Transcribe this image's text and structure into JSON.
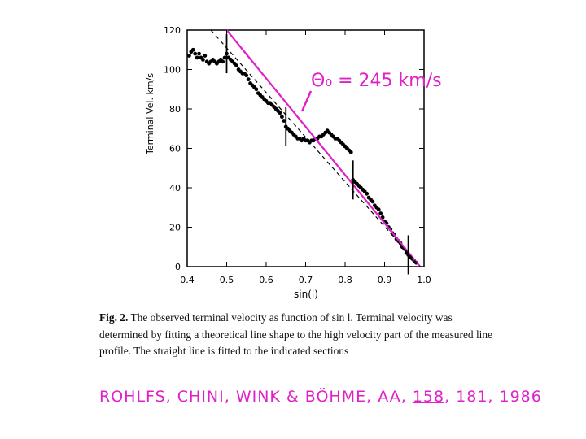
{
  "chart_data": {
    "type": "scatter",
    "xlabel": "sin(l)",
    "ylabel": "Terminal Vel. km/s",
    "xlim": [
      0.4,
      1.0
    ],
    "ylim": [
      0,
      120
    ],
    "x_ticks": [
      "0.4",
      "0.5",
      "0.6",
      "0.7",
      "0.8",
      "0.9",
      "1.0"
    ],
    "y_ticks": [
      "0",
      "20",
      "40",
      "60",
      "80",
      "100",
      "120"
    ],
    "grid": false,
    "annotation": "Θ₀ = 245 km/s",
    "series": [
      {
        "kind": "points",
        "color": "#000000",
        "points": [
          [
            0.405,
            107
          ],
          [
            0.41,
            109
          ],
          [
            0.415,
            110
          ],
          [
            0.42,
            108
          ],
          [
            0.425,
            106
          ],
          [
            0.43,
            108
          ],
          [
            0.435,
            106
          ],
          [
            0.44,
            105
          ],
          [
            0.445,
            107
          ],
          [
            0.45,
            104
          ],
          [
            0.455,
            103
          ],
          [
            0.46,
            104
          ],
          [
            0.465,
            105
          ],
          [
            0.47,
            104
          ],
          [
            0.475,
            103
          ],
          [
            0.48,
            104
          ],
          [
            0.485,
            105
          ],
          [
            0.49,
            104
          ],
          [
            0.495,
            106
          ],
          [
            0.5,
            108
          ],
          [
            0.505,
            106
          ],
          [
            0.51,
            105
          ],
          [
            0.515,
            104
          ],
          [
            0.52,
            103
          ],
          [
            0.525,
            102
          ],
          [
            0.53,
            100
          ],
          [
            0.535,
            99
          ],
          [
            0.54,
            98
          ],
          [
            0.545,
            98
          ],
          [
            0.55,
            97
          ],
          [
            0.555,
            95
          ],
          [
            0.56,
            93
          ],
          [
            0.565,
            92
          ],
          [
            0.57,
            91
          ],
          [
            0.575,
            90
          ],
          [
            0.58,
            88
          ],
          [
            0.585,
            87
          ],
          [
            0.59,
            86
          ],
          [
            0.595,
            85
          ],
          [
            0.6,
            84
          ],
          [
            0.605,
            83
          ],
          [
            0.61,
            83
          ],
          [
            0.615,
            82
          ],
          [
            0.62,
            81
          ],
          [
            0.625,
            80
          ],
          [
            0.63,
            79
          ],
          [
            0.635,
            78
          ],
          [
            0.64,
            76
          ],
          [
            0.645,
            74
          ],
          [
            0.65,
            71
          ],
          [
            0.655,
            70
          ],
          [
            0.66,
            69
          ],
          [
            0.665,
            68
          ],
          [
            0.67,
            67
          ],
          [
            0.675,
            66
          ],
          [
            0.68,
            65
          ],
          [
            0.685,
            65
          ],
          [
            0.69,
            64
          ],
          [
            0.695,
            65
          ],
          [
            0.7,
            64
          ],
          [
            0.705,
            64
          ],
          [
            0.71,
            63
          ],
          [
            0.715,
            64
          ],
          [
            0.72,
            64
          ],
          [
            0.725,
            65
          ],
          [
            0.73,
            65
          ],
          [
            0.735,
            66
          ],
          [
            0.74,
            66
          ],
          [
            0.745,
            67
          ],
          [
            0.75,
            68
          ],
          [
            0.755,
            69
          ],
          [
            0.76,
            68
          ],
          [
            0.765,
            67
          ],
          [
            0.77,
            66
          ],
          [
            0.775,
            65
          ],
          [
            0.78,
            65
          ],
          [
            0.785,
            64
          ],
          [
            0.79,
            63
          ],
          [
            0.795,
            62
          ],
          [
            0.8,
            61
          ],
          [
            0.805,
            60
          ],
          [
            0.81,
            59
          ],
          [
            0.815,
            58
          ],
          [
            0.82,
            44
          ],
          [
            0.825,
            43
          ],
          [
            0.83,
            42
          ],
          [
            0.835,
            41
          ],
          [
            0.84,
            40
          ],
          [
            0.845,
            39
          ],
          [
            0.85,
            38
          ],
          [
            0.855,
            37
          ],
          [
            0.86,
            35
          ],
          [
            0.865,
            34
          ],
          [
            0.87,
            33
          ],
          [
            0.875,
            31
          ],
          [
            0.88,
            30
          ],
          [
            0.885,
            29
          ],
          [
            0.89,
            27
          ],
          [
            0.895,
            25
          ],
          [
            0.9,
            23
          ],
          [
            0.905,
            22
          ],
          [
            0.91,
            20
          ],
          [
            0.915,
            19
          ],
          [
            0.92,
            17
          ],
          [
            0.925,
            16
          ],
          [
            0.93,
            14
          ],
          [
            0.935,
            13
          ],
          [
            0.94,
            12
          ],
          [
            0.945,
            10
          ],
          [
            0.95,
            9
          ],
          [
            0.955,
            7
          ],
          [
            0.96,
            6
          ],
          [
            0.965,
            5
          ],
          [
            0.97,
            4
          ],
          [
            0.975,
            3
          ],
          [
            0.98,
            2
          ]
        ]
      },
      {
        "kind": "line",
        "style": "solid",
        "color": "#e020c8",
        "points": [
          [
            0.5,
            120
          ],
          [
            0.99,
            0
          ]
        ]
      },
      {
        "kind": "line",
        "style": "dashed",
        "color": "#000000",
        "points": [
          [
            0.46,
            120
          ],
          [
            0.99,
            0
          ]
        ]
      }
    ],
    "section_markers": [
      0.5,
      0.65,
      0.82,
      0.96
    ]
  },
  "caption": {
    "label": "Fig. 2.",
    "text": "The observed terminal velocity as function of sin l. Terminal velocity was determined by fitting a theoretical line shape to the high velocity part of the measured line profile. The straight line is fitted to the indicated sections"
  },
  "citation": {
    "authors": "ROHLFS, CHINI, WINK & BÖHME, AA,",
    "volume": "158",
    "rest": ", 181, 1986"
  }
}
